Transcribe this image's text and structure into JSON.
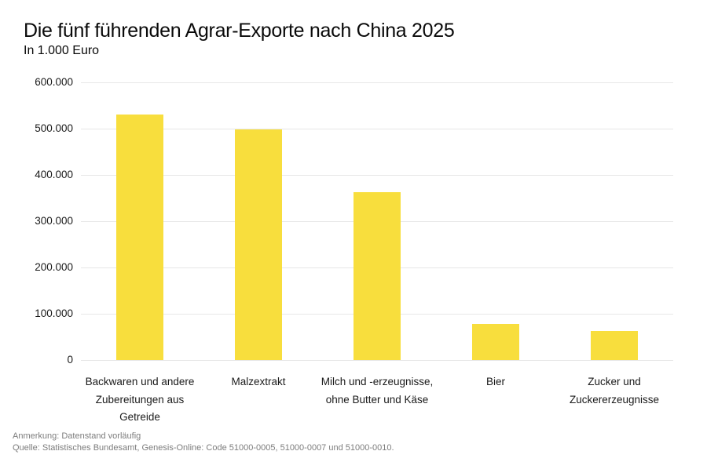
{
  "title": "Die fünf führenden Agrar-Exporte nach China 2025",
  "subtitle": "In 1.000 Euro",
  "footer": {
    "note": "Anmerkung: Datenstand vorläufig",
    "source": "Quelle: Statistisches Bundesamt, Genesis-Online: Code 51000-0005, 51000-0007 und 51000-0010."
  },
  "colors": {
    "bar": "#F8DE3D",
    "grid": "#E7E7E7",
    "text": "#1A1A1A",
    "footer_text": "#7D7D7D"
  },
  "chart_data": {
    "type": "bar",
    "title": "Die fünf führenden Agrar-Exporte nach China 2025",
    "subtitle": "In 1.000 Euro",
    "unit": "1.000 Euro",
    "categories": [
      "Backwaren und andere Zubereitungen aus Getreide",
      "Malzextrakt",
      "Milch und -erzeugnisse, ohne Butter und Käse",
      "Bier",
      "Zucker und Zuckererzeugnisse"
    ],
    "category_lines": [
      [
        "Backwaren und andere",
        "Zubereitungen aus",
        "Getreide"
      ],
      [
        "Malzextrakt"
      ],
      [
        "Milch und -erzeugnisse,",
        "ohne Butter und Käse"
      ],
      [
        "Bier"
      ],
      [
        "Zucker und",
        "Zuckererzeugnisse"
      ]
    ],
    "values": [
      530000,
      498000,
      363000,
      78000,
      62000
    ],
    "ylim": [
      0,
      600000
    ],
    "ytick_step": 100000,
    "ytick_labels": [
      "600.000",
      "500.000",
      "400.000",
      "300.000",
      "200.000",
      "100.000",
      "0"
    ],
    "grid": true,
    "legend": false,
    "xlabel": "",
    "ylabel": "",
    "bar_color": "#F8DE3D"
  }
}
